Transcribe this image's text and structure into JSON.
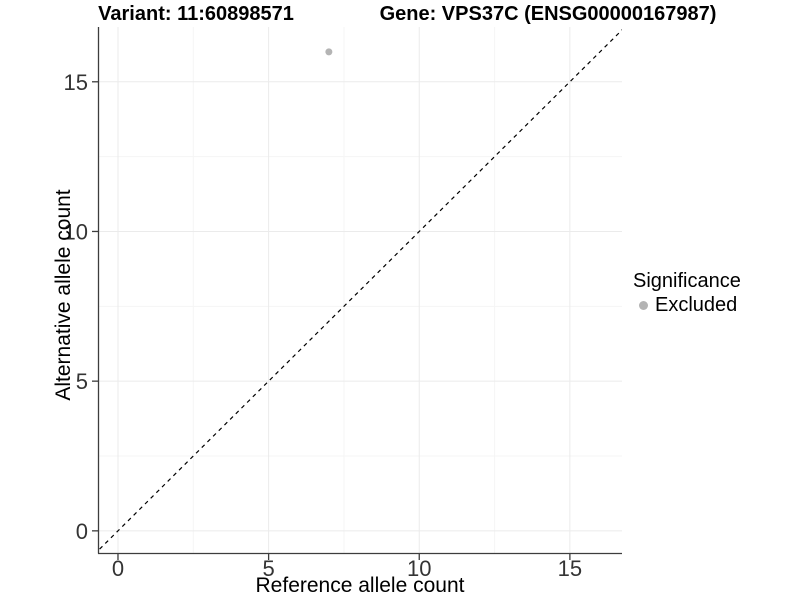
{
  "figure": {
    "titles": {
      "variant": "Variant: 11:60898571",
      "gene": "Gene: VPS37C (ENSG00000167987)"
    }
  },
  "chart_data": {
    "type": "scatter",
    "title": "Variant: 11:60898571    Gene: VPS37C (ENSG00000167987)",
    "xlabel": "Reference allele count",
    "ylabel": "Alternative allele count",
    "x_ticks": [
      0,
      5,
      10,
      15
    ],
    "y_ticks": [
      0,
      5,
      10,
      15
    ],
    "x_minor_ticks": [
      2.5,
      7.5,
      12.5
    ],
    "y_minor_ticks": [
      2.5,
      7.5,
      12.5
    ],
    "xlim": [
      -0.63,
      16.73
    ],
    "ylim": [
      -0.74,
      16.83
    ],
    "grid": true,
    "series": [
      {
        "name": "Excluded",
        "marker": "circle",
        "color": "#b4b4b4",
        "points": [
          {
            "x": 7,
            "y": 16
          }
        ]
      }
    ],
    "reference_line": {
      "kind": "identity",
      "slope": 1,
      "intercept": 0,
      "style": "dashed",
      "color": "#000000"
    },
    "legend": {
      "title": "Significance",
      "position": "right",
      "entries": [
        {
          "label": "Excluded",
          "marker": "circle",
          "color": "#b4b4b4"
        }
      ]
    }
  },
  "colors": {
    "background": "#ffffff",
    "axis_line": "#3d3d3d",
    "tick_mark": "#3d3d3d",
    "tick_label": "#343434",
    "grid_major": "#ebebeb",
    "grid_minor": "#f5f5f5",
    "point": "#b4b4b4",
    "identity_line": "#000000"
  }
}
